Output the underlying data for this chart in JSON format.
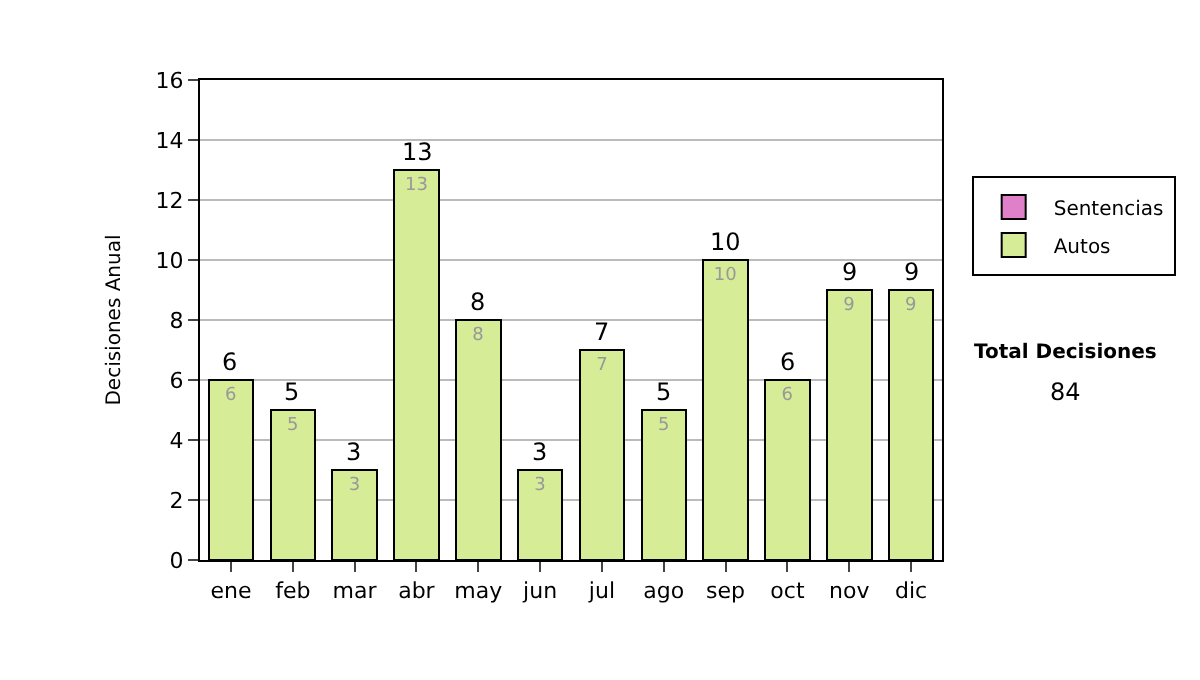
{
  "chart_data": {
    "type": "bar",
    "stacked": true,
    "ylabel": "Decisiones Anual",
    "categories": [
      "ene",
      "feb",
      "mar",
      "abr",
      "may",
      "jun",
      "jul",
      "ago",
      "sep",
      "oct",
      "nov",
      "dic"
    ],
    "series": [
      {
        "name": "Sentencias",
        "color": "#e080c8",
        "values": [
          0,
          0,
          0,
          0,
          0,
          0,
          0,
          0,
          0,
          0,
          0,
          0
        ]
      },
      {
        "name": "Autos",
        "color": "#d6ec96",
        "values": [
          6,
          5,
          3,
          13,
          8,
          3,
          7,
          5,
          10,
          6,
          9,
          9
        ],
        "value_labels": [
          "6",
          "5",
          "3",
          "13",
          "8",
          "3",
          "7",
          "5",
          "10",
          "6",
          "9",
          "9"
        ]
      }
    ],
    "totals": [
      "6",
      "5",
      "3",
      "13",
      "8",
      "3",
      "7",
      "5",
      "10",
      "6",
      "9",
      "9"
    ],
    "ylim": [
      0,
      16
    ],
    "yticks": [
      0,
      2,
      4,
      6,
      8,
      10,
      12,
      14,
      16
    ],
    "grid": "y",
    "legend": "right",
    "annotations": [
      "Total Decisiones",
      "84"
    ]
  }
}
